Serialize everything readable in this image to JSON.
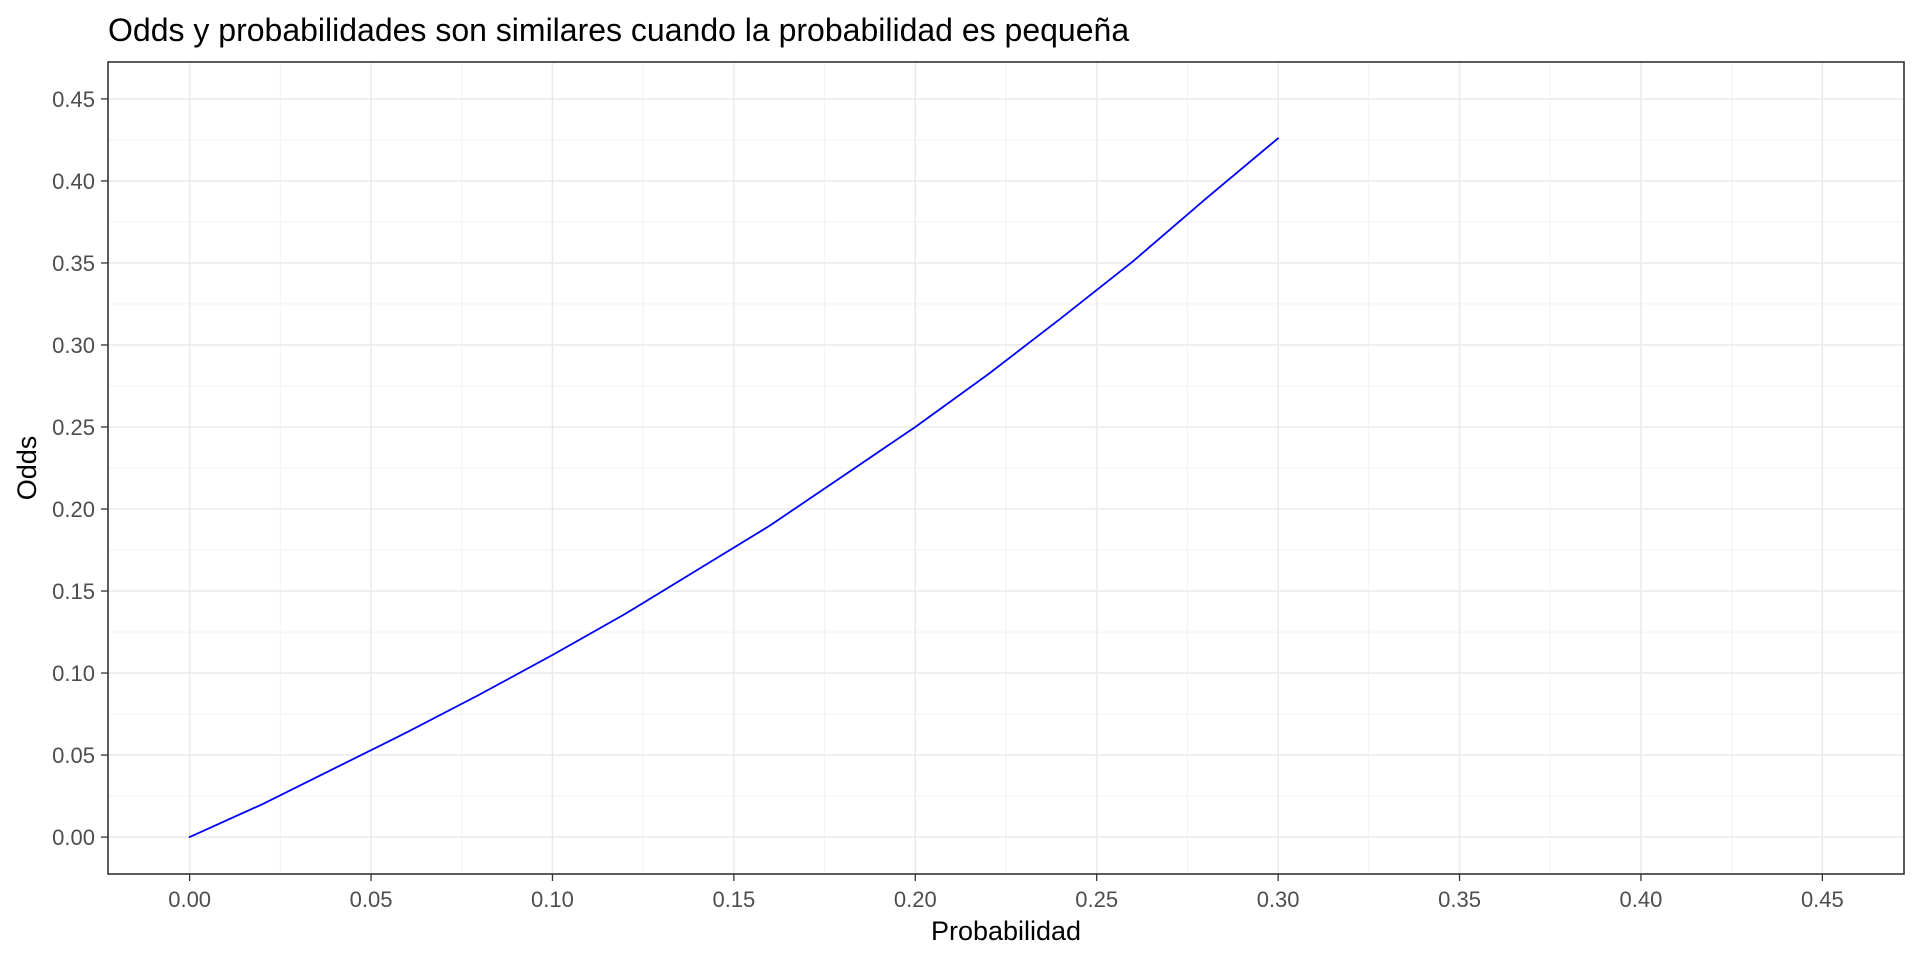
{
  "chart_data": {
    "type": "line",
    "title": "Odds y probabilidades son similares cuando la probabilidad es pequeña",
    "xlabel": "Probabilidad",
    "ylabel": "Odds",
    "xlim": [
      -0.0225,
      0.4725
    ],
    "ylim": [
      -0.0225,
      0.4725
    ],
    "x_ticks": [
      "0.00",
      "0.05",
      "0.10",
      "0.15",
      "0.20",
      "0.25",
      "0.30",
      "0.35",
      "0.40",
      "0.45"
    ],
    "y_ticks": [
      "0.00",
      "0.05",
      "0.10",
      "0.15",
      "0.20",
      "0.25",
      "0.30",
      "0.35",
      "0.40",
      "0.45"
    ],
    "grid": true,
    "legend": "none",
    "series": [
      {
        "color": "#0000ff",
        "x": [
          0.0,
          0.02,
          0.04,
          0.06,
          0.08,
          0.1,
          0.12,
          0.14,
          0.16,
          0.18,
          0.2,
          0.22,
          0.24,
          0.26,
          0.28,
          0.3
        ],
        "y": [
          0.0,
          0.02,
          0.042,
          0.064,
          0.087,
          0.111,
          0.136,
          0.163,
          0.19,
          0.22,
          0.25,
          0.282,
          0.316,
          0.351,
          0.389,
          0.426
        ]
      }
    ]
  }
}
